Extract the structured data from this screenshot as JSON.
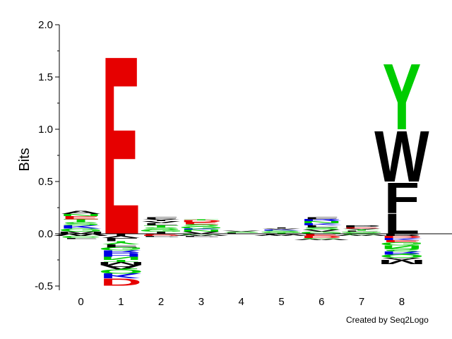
{
  "chart_data": {
    "type": "sequence-logo",
    "ylabel": "Bits",
    "ylim": [
      -0.5,
      2.0
    ],
    "yticks": [
      "-0.5",
      "0.0",
      "0.5",
      "1.0",
      "1.5",
      "2.0"
    ],
    "positions": [
      "0",
      "1",
      "2",
      "3",
      "4",
      "5",
      "6",
      "7",
      "8"
    ],
    "credit": "Created by Seq2Logo",
    "colors": {
      "acidic": "#e60000",
      "basic": "#0000e6",
      "polar": "#00cc00",
      "hydrophobic": "#000000",
      "neutral": "#cc00cc"
    },
    "columns": [
      {
        "position": "0",
        "positive": [
          {
            "letter": "M",
            "bits": 0.02,
            "color": "#000000"
          },
          {
            "letter": "G",
            "bits": 0.03,
            "color": "#00cc00"
          },
          {
            "letter": "K",
            "bits": 0.03,
            "color": "#0000e6"
          },
          {
            "letter": "S",
            "bits": 0.03,
            "color": "#00cc00"
          },
          {
            "letter": "T",
            "bits": 0.03,
            "color": "#00cc00"
          },
          {
            "letter": "E",
            "bits": 0.03,
            "color": "#e60000"
          },
          {
            "letter": "N",
            "bits": 0.02,
            "color": "#00cc00"
          },
          {
            "letter": "A",
            "bits": 0.03,
            "color": "#000000"
          }
        ],
        "negative": [
          {
            "letter": "W",
            "bits": 0.02,
            "color": "#000000"
          },
          {
            "letter": "C",
            "bits": 0.02,
            "color": "#00cc00"
          },
          {
            "letter": "F",
            "bits": 0.01,
            "color": "#000000"
          }
        ]
      },
      {
        "position": "1",
        "positive": [
          {
            "letter": "E",
            "bits": 1.76,
            "color": "#e60000"
          }
        ],
        "negative": [
          {
            "letter": "I",
            "bits": 0.02,
            "color": "#000000"
          },
          {
            "letter": "V",
            "bits": 0.02,
            "color": "#000000"
          },
          {
            "letter": "L",
            "bits": 0.03,
            "color": "#000000"
          },
          {
            "letter": "Y",
            "bits": 0.03,
            "color": "#00cc00"
          },
          {
            "letter": "F",
            "bits": 0.03,
            "color": "#000000"
          },
          {
            "letter": "G",
            "bits": 0.03,
            "color": "#00cc00"
          },
          {
            "letter": "R",
            "bits": 0.03,
            "color": "#0000e6"
          },
          {
            "letter": "H",
            "bits": 0.03,
            "color": "#0000e6"
          },
          {
            "letter": "N",
            "bits": 0.03,
            "color": "#00cc00"
          },
          {
            "letter": "T",
            "bits": 0.02,
            "color": "#00cc00"
          },
          {
            "letter": "M",
            "bits": 0.03,
            "color": "#000000"
          },
          {
            "letter": "A",
            "bits": 0.04,
            "color": "#000000"
          },
          {
            "letter": "Q",
            "bits": 0.04,
            "color": "#00cc00"
          },
          {
            "letter": "K",
            "bits": 0.05,
            "color": "#0000e6"
          },
          {
            "letter": "D",
            "bits": 0.07,
            "color": "#e60000"
          }
        ]
      },
      {
        "position": "2",
        "positive": [
          {
            "letter": "I",
            "bits": 0.02,
            "color": "#000000"
          },
          {
            "letter": "G",
            "bits": 0.02,
            "color": "#00cc00"
          },
          {
            "letter": "S",
            "bits": 0.02,
            "color": "#00cc00"
          },
          {
            "letter": "T",
            "bits": 0.02,
            "color": "#00cc00"
          },
          {
            "letter": "L",
            "bits": 0.02,
            "color": "#000000"
          },
          {
            "letter": "V",
            "bits": 0.02,
            "color": "#000000"
          },
          {
            "letter": "Y",
            "bits": 0.02,
            "color": "#000000"
          },
          {
            "letter": "F",
            "bits": 0.02,
            "color": "#000000"
          }
        ],
        "negative": [
          {
            "letter": "E",
            "bits": 0.01,
            "color": "#e60000"
          },
          {
            "letter": "D",
            "bits": 0.01,
            "color": "#e60000"
          },
          {
            "letter": "P",
            "bits": 0.01,
            "color": "#000000"
          }
        ]
      },
      {
        "position": "3",
        "positive": [
          {
            "letter": "V",
            "bits": 0.02,
            "color": "#000000"
          },
          {
            "letter": "N",
            "bits": 0.02,
            "color": "#00cc00"
          },
          {
            "letter": "K",
            "bits": 0.01,
            "color": "#0000e6"
          },
          {
            "letter": "G",
            "bits": 0.02,
            "color": "#00cc00"
          },
          {
            "letter": "S",
            "bits": 0.02,
            "color": "#00cc00"
          },
          {
            "letter": "E",
            "bits": 0.02,
            "color": "#e60000"
          },
          {
            "letter": "D",
            "bits": 0.02,
            "color": "#e60000"
          },
          {
            "letter": "T",
            "bits": 0.01,
            "color": "#00cc00"
          }
        ],
        "negative": [
          {
            "letter": "C",
            "bits": 0.01,
            "color": "#00cc00"
          },
          {
            "letter": "W",
            "bits": 0.01,
            "color": "#000000"
          },
          {
            "letter": "P",
            "bits": 0.01,
            "color": "#000000"
          }
        ]
      },
      {
        "position": "4",
        "positive": [
          {
            "letter": "L",
            "bits": 0.01,
            "color": "#000000"
          },
          {
            "letter": "S",
            "bits": 0.01,
            "color": "#00cc00"
          },
          {
            "letter": "V",
            "bits": 0.01,
            "color": "#000000"
          }
        ],
        "negative": [
          {
            "letter": "C",
            "bits": 0.005,
            "color": "#00cc00"
          }
        ]
      },
      {
        "position": "5",
        "positive": [
          {
            "letter": "T",
            "bits": 0.01,
            "color": "#00cc00"
          },
          {
            "letter": "G",
            "bits": 0.01,
            "color": "#00cc00"
          },
          {
            "letter": "S",
            "bits": 0.01,
            "color": "#00cc00"
          },
          {
            "letter": "K",
            "bits": 0.01,
            "color": "#0000e6"
          },
          {
            "letter": "V",
            "bits": 0.01,
            "color": "#000000"
          },
          {
            "letter": "I",
            "bits": 0.01,
            "color": "#000000"
          }
        ],
        "negative": [
          {
            "letter": "P",
            "bits": 0.01,
            "color": "#000000"
          },
          {
            "letter": "W",
            "bits": 0.01,
            "color": "#000000"
          }
        ]
      },
      {
        "position": "6",
        "positive": [
          {
            "letter": "G",
            "bits": 0.02,
            "color": "#00cc00"
          },
          {
            "letter": "V",
            "bits": 0.02,
            "color": "#000000"
          },
          {
            "letter": "S",
            "bits": 0.02,
            "color": "#00cc00"
          },
          {
            "letter": "L",
            "bits": 0.02,
            "color": "#000000"
          },
          {
            "letter": "K",
            "bits": 0.02,
            "color": "#0000e6"
          },
          {
            "letter": "N",
            "bits": 0.02,
            "color": "#00cc00"
          },
          {
            "letter": "R",
            "bits": 0.02,
            "color": "#0000e6"
          },
          {
            "letter": "F",
            "bits": 0.02,
            "color": "#000000"
          }
        ],
        "negative": [
          {
            "letter": "E",
            "bits": 0.02,
            "color": "#e60000"
          },
          {
            "letter": "D",
            "bits": 0.02,
            "color": "#e60000"
          },
          {
            "letter": "C",
            "bits": 0.01,
            "color": "#00cc00"
          },
          {
            "letter": "W",
            "bits": 0.01,
            "color": "#000000"
          }
        ]
      },
      {
        "position": "7",
        "positive": [
          {
            "letter": "S",
            "bits": 0.01,
            "color": "#00cc00"
          },
          {
            "letter": "G",
            "bits": 0.01,
            "color": "#00cc00"
          },
          {
            "letter": "L",
            "bits": 0.01,
            "color": "#000000"
          },
          {
            "letter": "T",
            "bits": 0.01,
            "color": "#00cc00"
          },
          {
            "letter": "V",
            "bits": 0.01,
            "color": "#000000"
          },
          {
            "letter": "E",
            "bits": 0.01,
            "color": "#e60000"
          },
          {
            "letter": "P",
            "bits": 0.02,
            "color": "#000000"
          }
        ],
        "negative": [
          {
            "letter": "C",
            "bits": 0.01,
            "color": "#00cc00"
          },
          {
            "letter": "W",
            "bits": 0.01,
            "color": "#000000"
          }
        ]
      },
      {
        "position": "8",
        "positive": [
          {
            "letter": "L",
            "bits": 0.2,
            "color": "#000000"
          },
          {
            "letter": "F",
            "bits": 0.3,
            "color": "#000000"
          },
          {
            "letter": "W",
            "bits": 0.5,
            "color": "#000000"
          },
          {
            "letter": "Y",
            "bits": 0.65,
            "color": "#00cc00"
          }
        ],
        "negative": [
          {
            "letter": "P",
            "bits": 0.02,
            "color": "#000000"
          },
          {
            "letter": "D",
            "bits": 0.02,
            "color": "#e60000"
          },
          {
            "letter": "K",
            "bits": 0.02,
            "color": "#0000e6"
          },
          {
            "letter": "E",
            "bits": 0.02,
            "color": "#e60000"
          },
          {
            "letter": "G",
            "bits": 0.03,
            "color": "#00cc00"
          },
          {
            "letter": "N",
            "bits": 0.03,
            "color": "#00cc00"
          },
          {
            "letter": "S",
            "bits": 0.03,
            "color": "#00cc00"
          },
          {
            "letter": "R",
            "bits": 0.03,
            "color": "#0000e6"
          },
          {
            "letter": "Q",
            "bits": 0.03,
            "color": "#00cc00"
          },
          {
            "letter": "A",
            "bits": 0.02,
            "color": "#000000"
          },
          {
            "letter": "M",
            "bits": 0.04,
            "color": "#000000"
          }
        ]
      }
    ]
  }
}
